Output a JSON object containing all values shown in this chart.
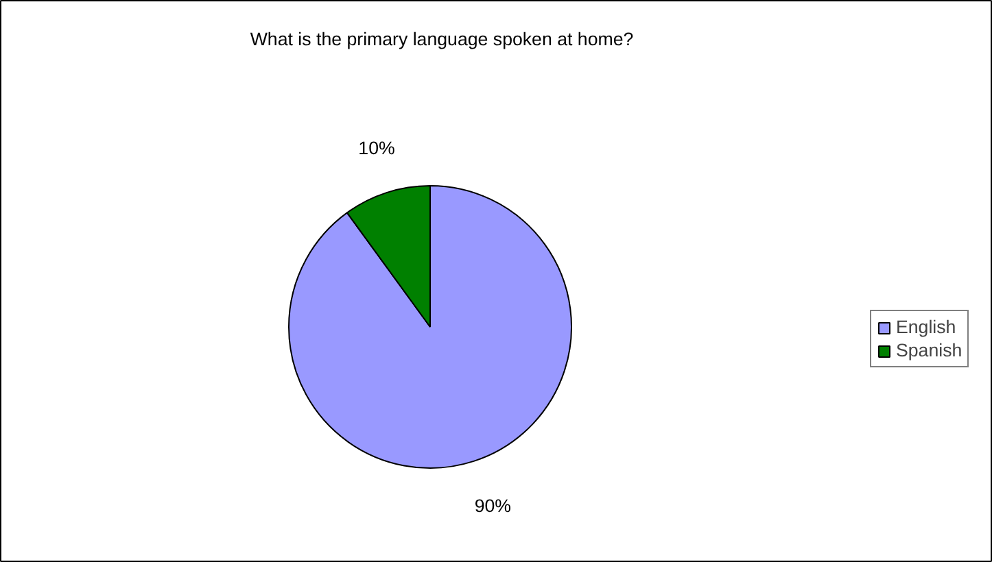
{
  "chart_data": {
    "type": "pie",
    "title": "What is the primary language spoken at home?",
    "categories": [
      "English",
      "Spanish"
    ],
    "values": [
      90,
      10
    ],
    "colors": [
      "#9999ff",
      "#008000"
    ],
    "value_labels": [
      "90%",
      "10%"
    ],
    "legend": "right"
  }
}
